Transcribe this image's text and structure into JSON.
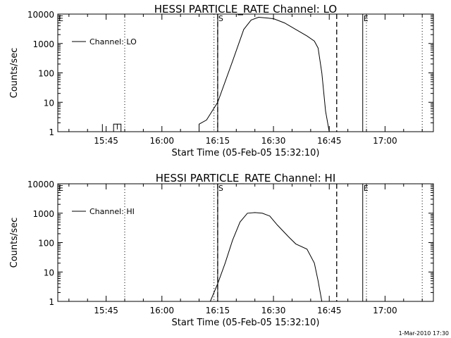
{
  "footer": {
    "timestamp": "1-Mar-2010 17:30"
  },
  "chart_data": [
    {
      "type": "line",
      "title": "HESSI PARTICLE_RATE Channel: LO",
      "xlabel": "Start Time (05-Feb-05 15:32:10)",
      "ylabel": "Counts/sec",
      "yscale": "log",
      "xlim": [
        "15:32",
        "17:13"
      ],
      "ylim": [
        1,
        10000
      ],
      "x_ticks": [
        "15:45",
        "16:00",
        "16:15",
        "16:30",
        "16:45",
        "17:00"
      ],
      "y_ticks": [
        "1",
        "10",
        "100",
        "1000",
        "10000"
      ],
      "legend": {
        "position": "top-left"
      },
      "markers": [
        {
          "label": "E",
          "time": "15:32",
          "style": "solid"
        },
        {
          "label": "S",
          "time": "16:15",
          "style": "solid"
        },
        {
          "label": "E",
          "time": "16:54",
          "style": "solid"
        }
      ],
      "dotted_lines": [
        "15:50",
        "16:14",
        "16:55",
        "17:10"
      ],
      "dashed_lines": [
        "16:15",
        "16:47"
      ],
      "series": [
        {
          "name": "Channel: LO",
          "x": [
            "15:34",
            "15:44",
            "15:44",
            "15:44",
            "15:47",
            "15:47",
            "15:48",
            "15:48",
            "15:48",
            "15:49",
            "15:49",
            "15:50",
            "16:10",
            "16:10",
            "16:12",
            "16:15",
            "16:19",
            "16:22",
            "16:24",
            "16:26",
            "16:30",
            "16:33",
            "16:36",
            "16:39",
            "16:41",
            "16:42",
            "16:43",
            "16:44",
            "16:45"
          ],
          "y": [
            1,
            1,
            1.8,
            1,
            1,
            1.8,
            1.8,
            1.2,
            1.8,
            1.8,
            1,
            1,
            1,
            1.8,
            2.5,
            10,
            250,
            3000,
            6300,
            7800,
            7000,
            5000,
            3000,
            1800,
            1200,
            700,
            100,
            5,
            1
          ]
        }
      ]
    },
    {
      "type": "line",
      "title": "HESSI PARTICLE_RATE Channel: HI",
      "xlabel": "Start Time (05-Feb-05 15:32:10)",
      "ylabel": "Counts/sec",
      "yscale": "log",
      "xlim": [
        "15:32",
        "17:13"
      ],
      "ylim": [
        1,
        10000
      ],
      "x_ticks": [
        "15:45",
        "16:00",
        "16:15",
        "16:30",
        "16:45",
        "17:00"
      ],
      "y_ticks": [
        "1",
        "10",
        "100",
        "1000",
        "10000"
      ],
      "legend": {
        "position": "top-left"
      },
      "markers": [
        {
          "label": "E",
          "time": "15:32",
          "style": "solid"
        },
        {
          "label": "S",
          "time": "16:15",
          "style": "solid"
        },
        {
          "label": "E",
          "time": "16:54",
          "style": "solid"
        }
      ],
      "dotted_lines": [
        "15:50",
        "16:14",
        "16:55",
        "17:10"
      ],
      "dashed_lines": [
        "16:15",
        "16:47"
      ],
      "series": [
        {
          "name": "Channel: HI",
          "x": [
            "16:13",
            "16:15",
            "16:17",
            "16:19",
            "16:21",
            "16:23",
            "16:25",
            "16:27",
            "16:29",
            "16:31",
            "16:34",
            "16:36",
            "16:39",
            "16:41",
            "16:42",
            "16:43"
          ],
          "y": [
            1,
            4,
            20,
            120,
            500,
            1000,
            1050,
            1000,
            800,
            400,
            160,
            90,
            60,
            20,
            5,
            1
          ]
        }
      ]
    }
  ]
}
